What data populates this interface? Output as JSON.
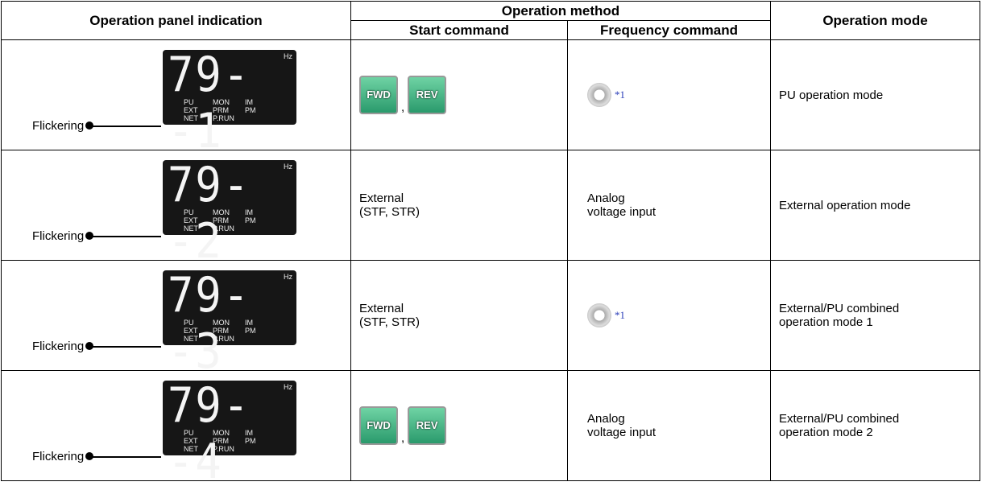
{
  "header": {
    "panel": "Operation panel indication",
    "method": "Operation method",
    "start": "Start command",
    "frequency": "Frequency command",
    "mode": "Operation mode"
  },
  "panel": {
    "hz": "Hz",
    "pu": "PU",
    "ext": "EXT",
    "net": "NET",
    "mon": "MON",
    "prm": "PRM",
    "prun": "P.RUN",
    "im": "IM",
    "pm": "PM",
    "flickering": "Flickering"
  },
  "rows": [
    {
      "display": "79--1",
      "start_keys": [
        "FWD",
        "REV"
      ],
      "start_separator": ",",
      "frequency_note": "*1",
      "mode": "PU operation mode"
    },
    {
      "display": "79--2",
      "start": "External\n(STF, STR)",
      "frequency": "Analog\nvoltage input",
      "mode": "External operation mode"
    },
    {
      "display": "79--3",
      "start": "External\n(STF, STR)",
      "frequency_note": "*1",
      "mode": "External/PU combined\noperation mode 1"
    },
    {
      "display": "79--4",
      "start_keys": [
        "FWD",
        "REV"
      ],
      "start_separator": ",",
      "frequency": "Analog\nvoltage input",
      "mode": "External/PU combined\noperation mode 2"
    }
  ]
}
